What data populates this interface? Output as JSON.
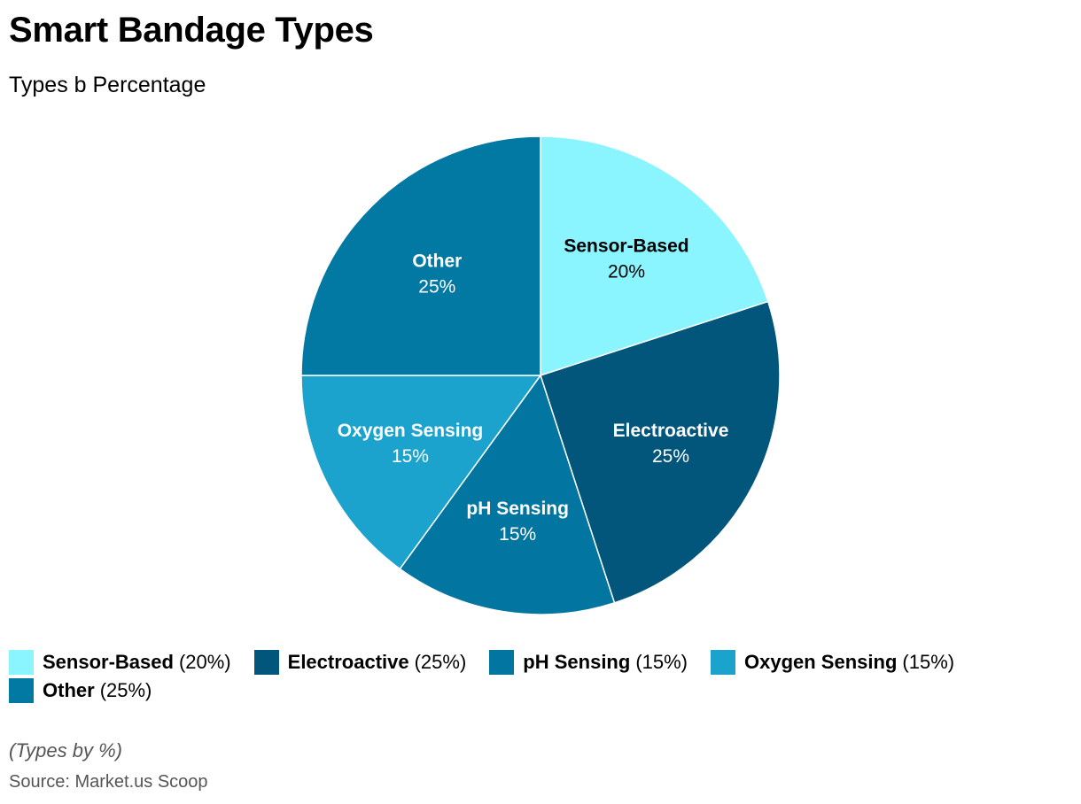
{
  "chart_data": {
    "type": "pie",
    "title": "Smart Bandage Types",
    "subtitle": "Types b Percentage",
    "categories": [
      "Sensor-Based",
      "Electroactive",
      "pH Sensing",
      "Oxygen Sensing",
      "Other"
    ],
    "values": [
      20,
      25,
      15,
      15,
      25
    ],
    "value_labels": [
      "20%",
      "25%",
      "15%",
      "15%",
      "25%"
    ],
    "legend_values": [
      "(20%)",
      "(25%)",
      "(15%)",
      "(15%)",
      "(25%)"
    ],
    "colors": [
      "#8AF4FF",
      "#02557B",
      "#0276A0",
      "#1BA3CD",
      "#0279A3"
    ],
    "label_colors": [
      "#000000",
      "#ffffff",
      "#ffffff",
      "#ffffff",
      "#ffffff"
    ],
    "legend_placement": "bottom",
    "note": "(Types by %)",
    "source": "Source: Market.us Scoop"
  }
}
